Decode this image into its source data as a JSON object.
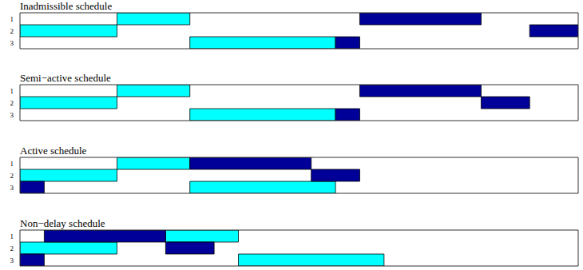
{
  "chart_data": [
    {
      "type": "gantt",
      "title": "Inadmissible schedule",
      "xlim": [
        0,
        23
      ],
      "ylim": [
        0.5,
        3.5
      ],
      "yticks": [
        1,
        2,
        3
      ],
      "tick_labels": "y",
      "series": [
        {
          "color": "#00ffff",
          "tasks": [
            {
              "machine": 2,
              "start": 0,
              "end": 4
            },
            {
              "machine": 1,
              "start": 4,
              "end": 7
            },
            {
              "machine": 3,
              "start": 7,
              "end": 13
            }
          ]
        },
        {
          "color": "#000099",
          "tasks": [
            {
              "machine": 3,
              "start": 13,
              "end": 14
            },
            {
              "machine": 1,
              "start": 14,
              "end": 19
            },
            {
              "machine": 2,
              "start": 21,
              "end": 23
            }
          ]
        }
      ]
    },
    {
      "type": "gantt",
      "title": "Semi−active schedule",
      "xlim": [
        0,
        23
      ],
      "ylim": [
        0.5,
        3.5
      ],
      "yticks": [
        1,
        2,
        3
      ],
      "tick_labels": "y",
      "series": [
        {
          "color": "#00ffff",
          "tasks": [
            {
              "machine": 2,
              "start": 0,
              "end": 4
            },
            {
              "machine": 1,
              "start": 4,
              "end": 7
            },
            {
              "machine": 3,
              "start": 7,
              "end": 13
            }
          ]
        },
        {
          "color": "#000099",
          "tasks": [
            {
              "machine": 3,
              "start": 13,
              "end": 14
            },
            {
              "machine": 1,
              "start": 14,
              "end": 19
            },
            {
              "machine": 2,
              "start": 19,
              "end": 21
            }
          ]
        }
      ]
    },
    {
      "type": "gantt",
      "title": "Active schedule",
      "xlim": [
        0,
        23
      ],
      "ylim": [
        0.5,
        3.5
      ],
      "yticks": [
        1,
        2,
        3
      ],
      "tick_labels": "y",
      "series": [
        {
          "color": "#00ffff",
          "tasks": [
            {
              "machine": 2,
              "start": 0,
              "end": 4
            },
            {
              "machine": 1,
              "start": 4,
              "end": 7
            },
            {
              "machine": 3,
              "start": 7,
              "end": 13
            }
          ]
        },
        {
          "color": "#000099",
          "tasks": [
            {
              "machine": 3,
              "start": 0,
              "end": 1
            },
            {
              "machine": 1,
              "start": 7,
              "end": 12
            },
            {
              "machine": 2,
              "start": 12,
              "end": 14
            }
          ]
        }
      ]
    },
    {
      "type": "gantt",
      "title": "Non−delay schedule",
      "xlim": [
        0,
        23
      ],
      "ylim": [
        0.5,
        3.5
      ],
      "yticks": [
        1,
        2,
        3
      ],
      "tick_labels": "y",
      "series": [
        {
          "color": "#00ffff",
          "tasks": [
            {
              "machine": 2,
              "start": 0,
              "end": 4
            },
            {
              "machine": 1,
              "start": 6,
              "end": 9
            },
            {
              "machine": 3,
              "start": 9,
              "end": 15
            }
          ]
        },
        {
          "color": "#000099",
          "tasks": [
            {
              "machine": 3,
              "start": 0,
              "end": 1
            },
            {
              "machine": 1,
              "start": 1,
              "end": 6
            },
            {
              "machine": 2,
              "start": 6,
              "end": 8
            }
          ]
        }
      ]
    }
  ]
}
